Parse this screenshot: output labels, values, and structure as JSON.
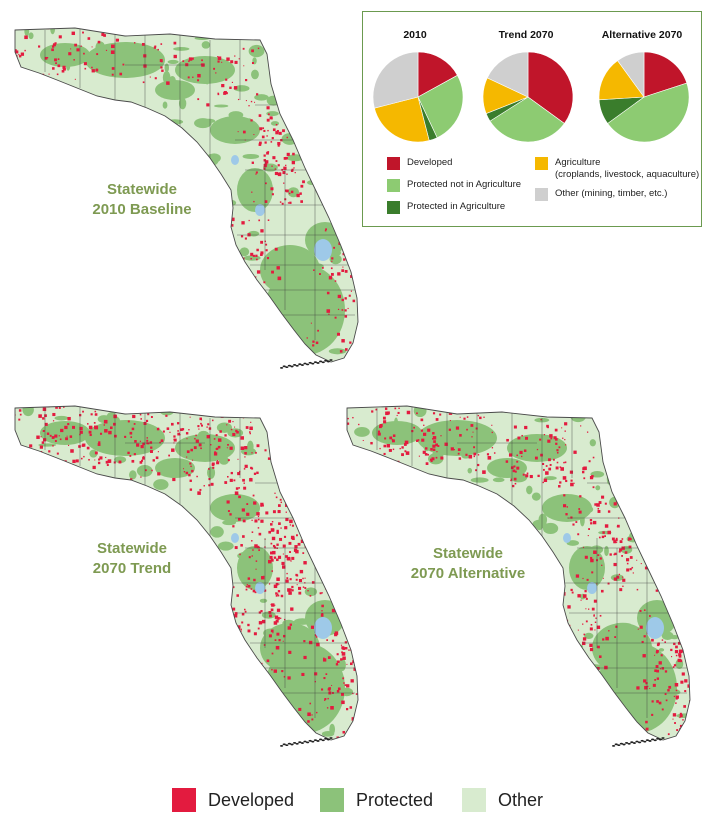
{
  "maps": [
    {
      "id": "baseline",
      "title_line1": "Statewide",
      "title_line2": "2010 Baseline",
      "dev_density": 0.9
    },
    {
      "id": "trend",
      "title_line1": "Statewide",
      "title_line2": "2070 Trend",
      "dev_density": 2.0
    },
    {
      "id": "alternative",
      "title_line1": "Statewide",
      "title_line2": "2070 Alternative",
      "dev_density": 1.4
    }
  ],
  "pies": [
    {
      "title": "2010",
      "slices": [
        {
          "key": "developed",
          "value": 17
        },
        {
          "key": "protected_not_ag",
          "value": 26
        },
        {
          "key": "protected_ag",
          "value": 3
        },
        {
          "key": "agriculture",
          "value": 25
        },
        {
          "key": "other",
          "value": 29
        }
      ]
    },
    {
      "title": "Trend 2070",
      "slices": [
        {
          "key": "developed",
          "value": 35
        },
        {
          "key": "protected_not_ag",
          "value": 31
        },
        {
          "key": "protected_ag",
          "value": 3
        },
        {
          "key": "agriculture",
          "value": 13
        },
        {
          "key": "other",
          "value": 18
        }
      ]
    },
    {
      "title": "Alternative 2070",
      "slices": [
        {
          "key": "developed",
          "value": 20
        },
        {
          "key": "protected_not_ag",
          "value": 45
        },
        {
          "key": "protected_ag",
          "value": 9
        },
        {
          "key": "agriculture",
          "value": 16
        },
        {
          "key": "other",
          "value": 10
        }
      ]
    }
  ],
  "categories": {
    "developed": {
      "label": "Developed",
      "color": "#c0152a"
    },
    "protected_not_ag": {
      "label": "Protected not in Agriculture",
      "color": "#8dcb72"
    },
    "protected_ag": {
      "label": "Protected in Agriculture",
      "color": "#3a7d2c"
    },
    "agriculture": {
      "label": "Agriculture",
      "sublabel": "(croplands, livestock, aquaculture)",
      "color": "#f5b800"
    },
    "other": {
      "label": "Other (mining, timber, etc.)",
      "color": "#cfcfcf"
    }
  },
  "bottom_legend": [
    {
      "label": "Developed",
      "color": "#e31b3f"
    },
    {
      "label": "Protected",
      "color": "#8cc27a"
    },
    {
      "label": "Other",
      "color": "#d8ebcf"
    }
  ]
}
